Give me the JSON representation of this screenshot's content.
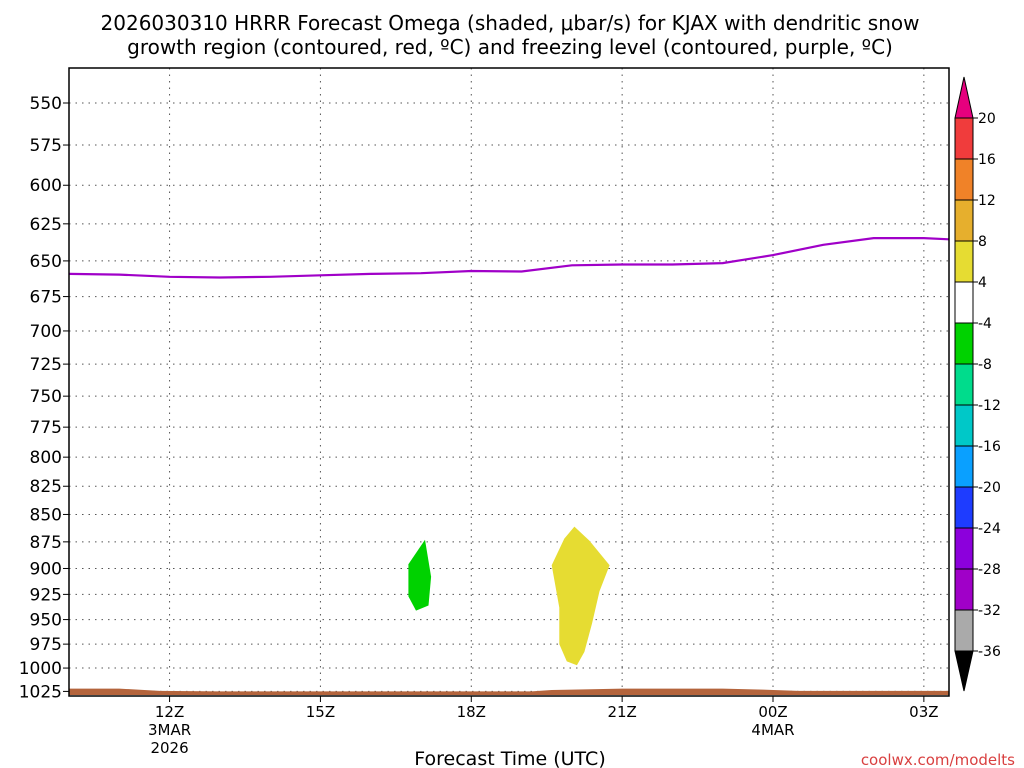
{
  "chart_data": {
    "type": "time-height cross section",
    "title_line1": "2026030310 HRRR Forecast Omega (shaded, μbar/s) for KJAX with dendritic snow",
    "title_line2": "growth region (contoured, red, ºC) and freezing level (contoured, purple, ºC)",
    "xlabel": "Forecast Time (UTC)",
    "credit": "coolwx.com/modelts",
    "x_range_hours": [
      10,
      27.5
    ],
    "x_ticks": [
      {
        "hour": 12,
        "label": "12Z",
        "sub1": "3MAR",
        "sub2": "2026"
      },
      {
        "hour": 15,
        "label": "15Z",
        "sub1": "",
        "sub2": ""
      },
      {
        "hour": 18,
        "label": "18Z",
        "sub1": "",
        "sub2": ""
      },
      {
        "hour": 21,
        "label": "21Z",
        "sub1": "",
        "sub2": ""
      },
      {
        "hour": 24,
        "label": "00Z",
        "sub1": "4MAR",
        "sub2": ""
      },
      {
        "hour": 27,
        "label": "03Z",
        "sub1": "",
        "sub2": ""
      }
    ],
    "y_range_hpa": [
      1030,
      530
    ],
    "y_ticks": [
      550,
      575,
      600,
      625,
      650,
      675,
      700,
      725,
      750,
      775,
      800,
      825,
      850,
      875,
      900,
      925,
      950,
      975,
      1000,
      1025
    ],
    "freezing_level": {
      "color": "#a000c8",
      "points": [
        [
          10,
          659
        ],
        [
          11,
          659.5
        ],
        [
          12,
          661
        ],
        [
          13,
          661.5
        ],
        [
          14,
          661
        ],
        [
          15,
          660
        ],
        [
          16,
          659
        ],
        [
          17,
          658.5
        ],
        [
          18,
          657
        ],
        [
          19,
          657.3
        ],
        [
          20,
          653
        ],
        [
          21,
          652.5
        ],
        [
          22,
          652.5
        ],
        [
          23,
          651.5
        ],
        [
          24,
          646
        ],
        [
          25,
          639
        ],
        [
          26,
          634.5
        ],
        [
          27,
          634.5
        ],
        [
          27.5,
          635.3
        ]
      ]
    },
    "omega_regions": [
      {
        "value_bin": "-8 to -4",
        "color": "#00d200",
        "points": [
          [
            16.75,
            896
          ],
          [
            17.08,
            873
          ],
          [
            17.2,
            908
          ],
          [
            17.15,
            936
          ],
          [
            16.9,
            941
          ],
          [
            16.75,
            927
          ]
        ]
      },
      {
        "value_bin": "4 to 8",
        "color": "#e6dc32",
        "points": [
          [
            19.6,
            897
          ],
          [
            19.85,
            872
          ],
          [
            20.05,
            861
          ],
          [
            20.35,
            874
          ],
          [
            20.75,
            897
          ],
          [
            20.55,
            922
          ],
          [
            20.4,
            954
          ],
          [
            20.25,
            983
          ],
          [
            20.1,
            997
          ],
          [
            19.9,
            993
          ],
          [
            19.75,
            975
          ],
          [
            19.75,
            938
          ]
        ]
      }
    ],
    "terrain": {
      "color": "#b4643c",
      "points": [
        [
          10,
          1022
        ],
        [
          11,
          1022
        ],
        [
          11.8,
          1024.5
        ],
        [
          13,
          1025
        ],
        [
          18,
          1025
        ],
        [
          19.2,
          1025
        ],
        [
          19.6,
          1023.5
        ],
        [
          20,
          1023
        ],
        [
          21,
          1022
        ],
        [
          23,
          1022
        ],
        [
          23.8,
          1023
        ],
        [
          24.5,
          1024.5
        ],
        [
          27.5,
          1024.5
        ]
      ]
    },
    "colorbar": {
      "labels": [
        "20",
        "16",
        "12",
        "8",
        "4",
        "-4",
        "-8",
        "-12",
        "-16",
        "-20",
        "-24",
        "-28",
        "-32",
        "-36"
      ],
      "colors": [
        "#f03c3c",
        "#f08228",
        "#e6af2d",
        "#e6dc32",
        "#ffffff",
        "#00d200",
        "#00dc8c",
        "#00c8c8",
        "#0aa0ff",
        "#1e3cff",
        "#8c00dc",
        "#a000c8",
        "#aaaaaa"
      ],
      "top_arrow_color": "#e6007e",
      "bottom_arrow_color": "#000000"
    }
  }
}
